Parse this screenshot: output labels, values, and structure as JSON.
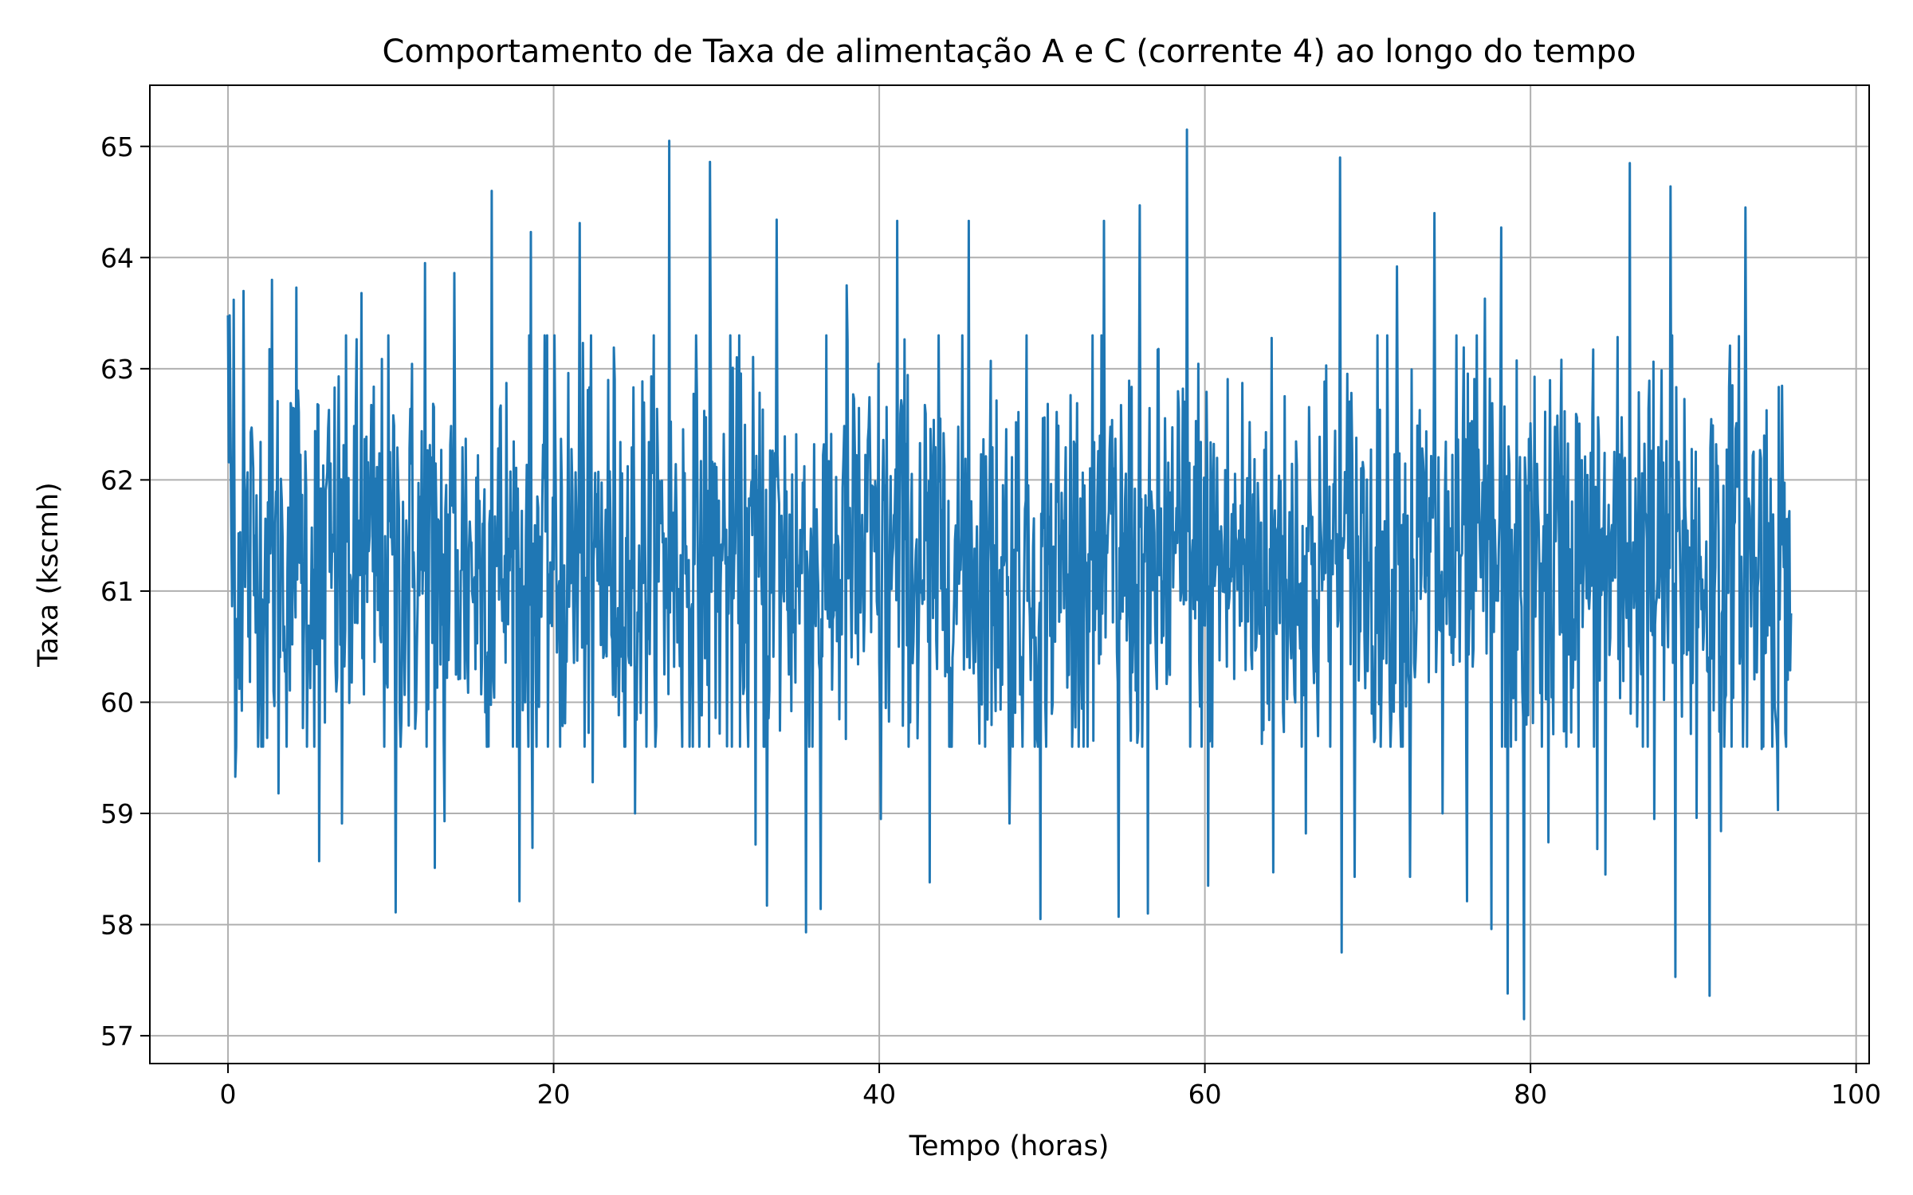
{
  "chart_data": {
    "type": "line",
    "title": "Comportamento de Taxa de alimentação A e C (corrente 4) ao longo do tempo",
    "xlabel": "Tempo (horas)",
    "ylabel": "Taxa (kscmh)",
    "xlim": [
      -4.8,
      100.8
    ],
    "ylim": [
      56.75,
      65.55
    ],
    "x_ticks": [
      0,
      20,
      40,
      60,
      80,
      100
    ],
    "y_ticks": [
      57,
      58,
      59,
      60,
      61,
      62,
      63,
      64,
      65
    ],
    "x_tick_labels": [
      "0",
      "20",
      "40",
      "60",
      "80",
      "100"
    ],
    "y_tick_labels": [
      "57",
      "58",
      "59",
      "60",
      "61",
      "62",
      "63",
      "64",
      "65"
    ],
    "grid": true,
    "line_color": "#1f77b4",
    "series": [
      {
        "x_start": 0,
        "x_end": 96,
        "points_per_hour": 20,
        "mean": 61.25,
        "spread": 0.95,
        "min": 57.15,
        "max": 65.15,
        "extremes": [
          [
            0.1,
            63.48
          ],
          [
            0.35,
            63.62
          ],
          [
            0.45,
            59.33
          ],
          [
            0.95,
            63.7
          ],
          [
            2.7,
            63.8
          ],
          [
            3.1,
            59.18
          ],
          [
            4.2,
            63.73
          ],
          [
            5.6,
            58.57
          ],
          [
            7.0,
            58.91
          ],
          [
            8.2,
            63.68
          ],
          [
            10.3,
            58.11
          ],
          [
            12.1,
            63.95
          ],
          [
            12.7,
            58.51
          ],
          [
            13.3,
            58.93
          ],
          [
            13.9,
            63.86
          ],
          [
            16.2,
            64.6
          ],
          [
            17.9,
            58.21
          ],
          [
            18.6,
            64.23
          ],
          [
            18.7,
            58.69
          ],
          [
            21.6,
            64.31
          ],
          [
            22.4,
            59.28
          ],
          [
            25.0,
            59.0
          ],
          [
            27.1,
            65.05
          ],
          [
            29.6,
            64.86
          ],
          [
            32.4,
            58.72
          ],
          [
            33.1,
            58.17
          ],
          [
            33.7,
            64.34
          ],
          [
            35.5,
            57.93
          ],
          [
            36.4,
            58.14
          ],
          [
            38.0,
            63.75
          ],
          [
            40.1,
            58.95
          ],
          [
            41.1,
            64.33
          ],
          [
            43.1,
            58.38
          ],
          [
            45.5,
            64.33
          ],
          [
            48.0,
            58.91
          ],
          [
            49.9,
            58.05
          ],
          [
            53.8,
            64.33
          ],
          [
            54.7,
            58.07
          ],
          [
            56.0,
            64.47
          ],
          [
            56.5,
            58.1
          ],
          [
            58.9,
            65.15
          ],
          [
            60.2,
            58.35
          ],
          [
            64.2,
            58.47
          ],
          [
            66.2,
            58.82
          ],
          [
            68.3,
            64.9
          ],
          [
            68.4,
            57.75
          ],
          [
            69.2,
            58.43
          ],
          [
            71.8,
            63.92
          ],
          [
            72.6,
            58.43
          ],
          [
            74.1,
            64.4
          ],
          [
            74.6,
            59.0
          ],
          [
            76.1,
            58.21
          ],
          [
            77.2,
            63.63
          ],
          [
            77.6,
            57.96
          ],
          [
            78.2,
            64.27
          ],
          [
            78.6,
            57.38
          ],
          [
            79.6,
            57.15
          ],
          [
            81.1,
            58.74
          ],
          [
            84.1,
            58.68
          ],
          [
            84.6,
            58.45
          ],
          [
            86.1,
            64.85
          ],
          [
            87.6,
            58.95
          ],
          [
            88.6,
            64.64
          ],
          [
            88.9,
            57.53
          ],
          [
            90.2,
            58.96
          ],
          [
            91.0,
            57.36
          ],
          [
            91.7,
            58.84
          ],
          [
            93.2,
            64.45
          ],
          [
            94.2,
            59.58
          ],
          [
            95.2,
            59.03
          ]
        ]
      }
    ]
  }
}
